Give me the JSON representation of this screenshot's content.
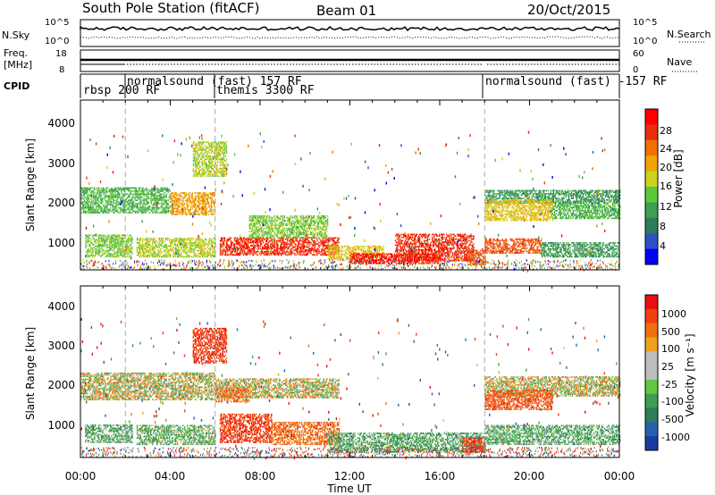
{
  "header": {
    "title": "South Pole Station (fitACF)",
    "beam": "Beam 01",
    "date": "20/Oct/2015"
  },
  "strips": {
    "nsky_label": "N.Sky",
    "nsky_ticks": [
      "10^5",
      "10^0"
    ],
    "nsearch_label": "N.Search",
    "nsearch_ticks": [
      "10^5",
      "10^0"
    ],
    "freq_label_line1": "Freq.",
    "freq_label_line2": "[MHz]",
    "freq_ticks": [
      "18",
      "8"
    ],
    "nave_label": "Nave",
    "nave_ticks": [
      "60",
      "0"
    ],
    "cpid_label": "CPID"
  },
  "cpid_segments": [
    {
      "label": "rbsp 200 RF",
      "start_hour": 0.0
    },
    {
      "label": "normalsound (fast) 157 RF",
      "start_hour": 2.0
    },
    {
      "label": "themis 3300 RF",
      "start_hour": 6.0
    },
    {
      "label": "normalsound (fast) -157 RF",
      "start_hour": 18.0
    }
  ],
  "x_axis": {
    "title": "Time UT",
    "ticks": [
      "00:00",
      "04:00",
      "08:00",
      "12:00",
      "16:00",
      "20:00",
      "00:00"
    ]
  },
  "power_panel": {
    "ylabel": "Slant Range [km]",
    "yticks": [
      "4000",
      "3000",
      "2000",
      "1000"
    ],
    "colorbar_label": "Power [dB]",
    "colorbar_ticks": [
      "28",
      "24",
      "20",
      "16",
      "12",
      "8",
      "4"
    ],
    "colors": [
      "#0000ff",
      "#3050c8",
      "#2e7d5a",
      "#3ca050",
      "#5cc83c",
      "#c8d41e",
      "#f0a500",
      "#f07000",
      "#e83010",
      "#ff0000"
    ]
  },
  "velocity_panel": {
    "ylabel": "Slant Range [km]",
    "yticks": [
      "4000",
      "3000",
      "2000",
      "1000"
    ],
    "colorbar_label": "Velocity [m s⁻¹]",
    "colorbar_ticks": [
      "1000",
      "500",
      "100",
      "25",
      "-25",
      "-100",
      "-500",
      "-1000"
    ],
    "colors": [
      "#1a3ca0",
      "#2860b0",
      "#2e7d5a",
      "#3ca050",
      "#60c840",
      "#bdbdbd",
      "#bdbdbd",
      "#f0a020",
      "#f07010",
      "#f04010",
      "#e81010"
    ]
  },
  "chart_data": [
    {
      "type": "line",
      "title": "South Pole Station (fitACF) Beam 01 — N.Sky / N.Search",
      "xlabel": "Time UT",
      "ylabel": "N.Sky",
      "x_range_hours": [
        0,
        24
      ],
      "yscale": "log",
      "ylim": [
        "10^0",
        "10^5"
      ]
    },
    {
      "type": "line",
      "title": "Freq. [MHz] / Nave",
      "xlabel": "Time UT",
      "ylabel": "Freq. [MHz]",
      "x_range_hours": [
        0,
        24
      ],
      "ylim": [
        8,
        18
      ],
      "y2lim": [
        0,
        60
      ]
    },
    {
      "type": "heatmap",
      "title": "Power",
      "xlabel": "Time UT",
      "ylabel": "Slant Range [km]",
      "x_range_hours": [
        0,
        24
      ],
      "ylim": [
        180,
        4600
      ],
      "colorbar": {
        "label": "Power [dB]",
        "range": [
          0,
          30
        ]
      },
      "regions": [
        {
          "t0": 0.0,
          "t1": 4.0,
          "r0": 1650,
          "r1": 2300,
          "value": 12
        },
        {
          "t0": 0.2,
          "t1": 2.3,
          "r0": 500,
          "r1": 1100,
          "value": 14
        },
        {
          "t0": 2.5,
          "t1": 6.0,
          "r0": 500,
          "r1": 1000,
          "value": 16
        },
        {
          "t0": 4.0,
          "t1": 6.0,
          "r0": 1600,
          "r1": 2200,
          "value": 20
        },
        {
          "t0": 5.0,
          "t1": 6.5,
          "r0": 2600,
          "r1": 3500,
          "value": 16
        },
        {
          "t0": 6.2,
          "t1": 11.5,
          "r0": 550,
          "r1": 1000,
          "value": 26
        },
        {
          "t0": 7.5,
          "t1": 11.0,
          "r0": 1000,
          "r1": 1600,
          "value": 14
        },
        {
          "t0": 11.0,
          "t1": 13.5,
          "r0": 450,
          "r1": 800,
          "value": 18
        },
        {
          "t0": 12.0,
          "t1": 16.0,
          "r0": 330,
          "r1": 600,
          "value": 28
        },
        {
          "t0": 14.0,
          "t1": 17.5,
          "r0": 400,
          "r1": 1100,
          "value": 26
        },
        {
          "t0": 17.2,
          "t1": 18.0,
          "r0": 300,
          "r1": 700,
          "value": 24
        },
        {
          "t0": 18.0,
          "t1": 24.0,
          "r0": 1900,
          "r1": 2250,
          "value": 10
        },
        {
          "t0": 18.0,
          "t1": 21.0,
          "r0": 1450,
          "r1": 2000,
          "value": 18
        },
        {
          "t0": 18.0,
          "t1": 20.5,
          "r0": 600,
          "r1": 1000,
          "value": 24
        },
        {
          "t0": 20.5,
          "t1": 24.0,
          "r0": 500,
          "r1": 900,
          "value": 10
        },
        {
          "t0": 21.0,
          "t1": 24.0,
          "r0": 1500,
          "r1": 1900,
          "value": 12
        }
      ]
    },
    {
      "type": "heatmap",
      "title": "Velocity",
      "xlabel": "Time UT",
      "ylabel": "Slant Range [km]",
      "x_range_hours": [
        0,
        24
      ],
      "ylim": [
        180,
        4600
      ],
      "colorbar": {
        "label": "Velocity [m s⁻¹]",
        "range": [
          -1000,
          1000
        ]
      },
      "regions": [
        {
          "t0": 0.0,
          "t1": 6.0,
          "r0": 1650,
          "r1": 2350,
          "value": 0
        },
        {
          "t0": 6.0,
          "t1": 11.5,
          "r0": 1700,
          "r1": 2200,
          "value": 0
        },
        {
          "t0": 0.2,
          "t1": 2.3,
          "r0": 550,
          "r1": 1000,
          "value": 150
        },
        {
          "t0": 2.5,
          "t1": 6.0,
          "r0": 500,
          "r1": 1000,
          "value": 120
        },
        {
          "t0": 5.0,
          "t1": 6.5,
          "r0": 2600,
          "r1": 3500,
          "value": -400
        },
        {
          "t0": 6.0,
          "t1": 7.5,
          "r0": 1600,
          "r1": 2000,
          "value": -150
        },
        {
          "t0": 6.2,
          "t1": 8.5,
          "r0": 550,
          "r1": 1300,
          "value": -400
        },
        {
          "t0": 8.5,
          "t1": 11.5,
          "r0": 500,
          "r1": 1100,
          "value": -200
        },
        {
          "t0": 11.0,
          "t1": 18.0,
          "r0": 300,
          "r1": 800,
          "value": 150
        },
        {
          "t0": 17.0,
          "t1": 18.0,
          "r0": 300,
          "r1": 700,
          "value": -400
        },
        {
          "t0": 18.0,
          "t1": 24.0,
          "r0": 1750,
          "r1": 2250,
          "value": 0
        },
        {
          "t0": 18.0,
          "t1": 21.0,
          "r0": 1400,
          "r1": 1900,
          "value": -300
        },
        {
          "t0": 18.0,
          "t1": 24.0,
          "r0": 500,
          "r1": 1000,
          "value": 150
        }
      ]
    }
  ]
}
